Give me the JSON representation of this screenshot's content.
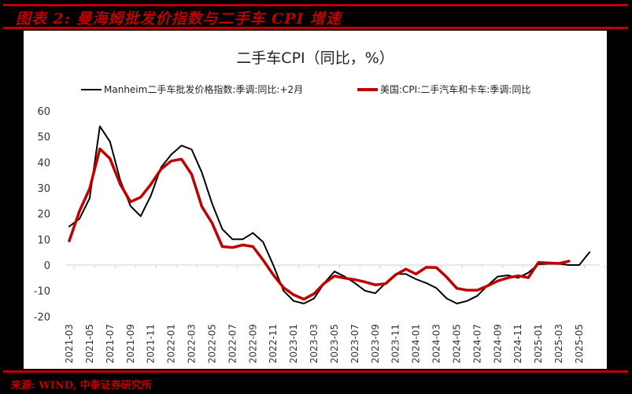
{
  "figure": {
    "title": "图表 2:  曼海姆批发价指数与二手车 CPI 增速",
    "source": "来源: WIND, 中泰证券研究所",
    "accent_color": "#c00000"
  },
  "chart_data": {
    "type": "line",
    "title": "二手车CPI（同比，%）",
    "xlabel": "",
    "ylabel": "",
    "ylim": [
      -20,
      60
    ],
    "yticks": [
      60,
      50,
      40,
      30,
      20,
      10,
      0,
      -10,
      -20
    ],
    "grid": false,
    "legend_position": "top",
    "x_tick_labels": [
      "2021-03",
      "2021-05",
      "2021-07",
      "2021-09",
      "2021-11",
      "2022-01",
      "2022-03",
      "2022-05",
      "2022-07",
      "2022-09",
      "2022-11",
      "2023-01",
      "2023-03",
      "2023-05",
      "2023-07",
      "2023-09",
      "2023-11",
      "2024-01",
      "2024-03",
      "2024-05",
      "2024-07",
      "2024-09",
      "2024-11",
      "2025-01",
      "2025-03",
      "2025-05"
    ],
    "x_start": "2021-03",
    "series": [
      {
        "name": "Manheim二手车批发价格指数:季调:同比:+2月",
        "color": "#000000",
        "line_width": 2,
        "start": "2021-03",
        "values": [
          15,
          18,
          26,
          54,
          48,
          33,
          23,
          19,
          27,
          38,
          43,
          46.5,
          45,
          36,
          24,
          14,
          10,
          10,
          12.5,
          9,
          0,
          -10,
          -14,
          -15,
          -13,
          -7,
          -2.5,
          -4.5,
          -7,
          -10,
          -11,
          -7,
          -3.5,
          -3.5,
          -5.5,
          -7,
          -9,
          -13,
          -15,
          -14,
          -12,
          -8,
          -4.5,
          -4,
          -5,
          -3,
          0.3,
          0.5,
          0.5,
          0,
          0,
          5
        ]
      },
      {
        "name": "美国:CPI:二手汽车和卡车:季调:同比",
        "color": "#c00000",
        "line_width": 3.5,
        "start": "2021-03",
        "values": [
          9.4,
          21,
          29.7,
          45.2,
          41.4,
          31.4,
          24.6,
          26.4,
          31.4,
          37.3,
          40.5,
          41.2,
          35.3,
          22.7,
          16.4,
          7.2,
          6.8,
          7.8,
          7.2,
          2.0,
          -3.8,
          -8.8,
          -11.6,
          -13.3,
          -11.2,
          -7.1,
          -4.3,
          -5.1,
          -5.7,
          -6.6,
          -7.7,
          -7.3,
          -3.8,
          -1.6,
          -3.5,
          -0.9,
          -1.0,
          -4.7,
          -9.1,
          -9.8,
          -9.8,
          -8.1,
          -6.2,
          -5.0,
          -4.2,
          -4.9,
          1.0,
          0.8,
          0.6,
          1.5
        ]
      }
    ]
  }
}
